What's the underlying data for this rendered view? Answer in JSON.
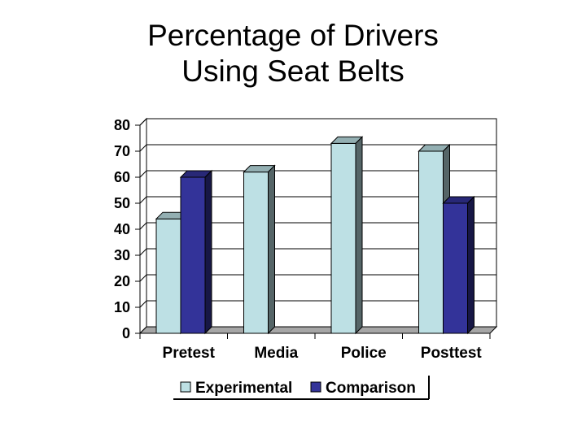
{
  "chart_data": {
    "type": "bar",
    "title_lines": [
      "Percentage of Drivers",
      "Using Seat Belts"
    ],
    "categories": [
      "Pretest",
      "Media",
      "Police",
      "Posttest"
    ],
    "series": [
      {
        "name": "Experimental",
        "values": [
          44,
          62,
          73,
          70
        ],
        "color": "#bde0e4"
      },
      {
        "name": "Comparison",
        "values": [
          60,
          null,
          null,
          50
        ],
        "color": "#333399"
      }
    ],
    "ylim": [
      0,
      80
    ],
    "yticks": [
      "0",
      "10",
      "20",
      "30",
      "40",
      "50",
      "60",
      "70",
      "80"
    ],
    "grid": true,
    "legend_position": "bottom",
    "style": "3d"
  }
}
